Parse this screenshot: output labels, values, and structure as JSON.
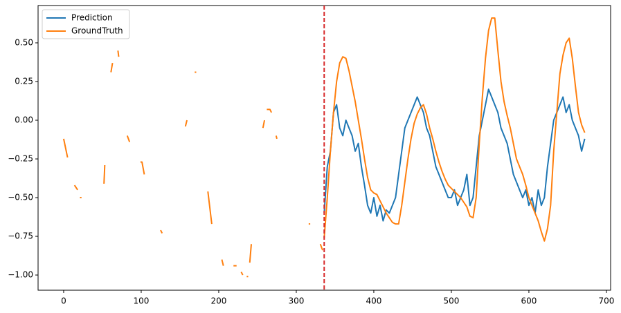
{
  "chart_data": {
    "type": "line",
    "xlim": [
      -33,
      705.4
    ],
    "ylim": [
      -1.098,
      0.741
    ],
    "xticks": [
      0,
      100,
      200,
      300,
      400,
      500,
      600,
      700
    ],
    "yticks": [
      {
        "value": -1,
        "label": "−1.00"
      },
      {
        "value": -0.75,
        "label": "−0.75"
      },
      {
        "value": -0.5,
        "label": "−0.50"
      },
      {
        "value": -0.25,
        "label": "−0.25"
      },
      {
        "value": 0,
        "label": "0.00"
      },
      {
        "value": 0.25,
        "label": "0.25"
      },
      {
        "value": 0.5,
        "label": "0.50"
      }
    ],
    "legend": "upper left",
    "vlines": [
      {
        "x": 336,
        "color": "#d62728"
      }
    ],
    "series": [
      {
        "name": "Prediction",
        "color": "#1f77b4",
        "x": [
          336,
          340,
          344,
          348,
          352,
          356,
          360,
          364,
          368,
          372,
          376,
          380,
          384,
          388,
          392,
          396,
          400,
          404,
          408,
          412,
          416,
          420,
          424,
          428,
          432,
          436,
          440,
          444,
          448,
          452,
          456,
          460,
          464,
          468,
          472,
          476,
          480,
          484,
          488,
          492,
          496,
          500,
          504,
          508,
          512,
          516,
          520,
          524,
          528,
          532,
          536,
          540,
          544,
          548,
          552,
          556,
          560,
          564,
          568,
          572,
          576,
          580,
          584,
          588,
          592,
          596,
          600,
          604,
          608,
          612,
          616,
          620,
          624,
          628,
          632,
          636,
          640,
          644,
          648,
          652,
          656,
          660,
          664,
          668,
          672
        ],
        "values": [
          -0.6,
          -0.3,
          -0.2,
          0.05,
          0.1,
          -0.05,
          -0.1,
          0.0,
          -0.05,
          -0.1,
          -0.2,
          -0.15,
          -0.3,
          -0.42,
          -0.55,
          -0.6,
          -0.5,
          -0.62,
          -0.55,
          -0.65,
          -0.58,
          -0.6,
          -0.55,
          -0.5,
          -0.35,
          -0.2,
          -0.05,
          0.0,
          0.05,
          0.1,
          0.15,
          0.1,
          0.05,
          -0.05,
          -0.1,
          -0.2,
          -0.3,
          -0.35,
          -0.4,
          -0.45,
          -0.5,
          -0.5,
          -0.45,
          -0.55,
          -0.5,
          -0.45,
          -0.35,
          -0.55,
          -0.5,
          -0.3,
          -0.1,
          0.0,
          0.1,
          0.2,
          0.15,
          0.1,
          0.05,
          -0.05,
          -0.1,
          -0.15,
          -0.25,
          -0.35,
          -0.4,
          -0.45,
          -0.5,
          -0.45,
          -0.55,
          -0.5,
          -0.6,
          -0.45,
          -0.55,
          -0.5,
          -0.3,
          -0.15,
          0.0,
          0.05,
          0.1,
          0.15,
          0.05,
          0.1,
          0.0,
          -0.05,
          -0.1,
          -0.2,
          -0.12
        ]
      },
      {
        "name": "GroundTruth",
        "color": "#ff7f0e",
        "x": [
          0,
          5,
          10,
          14,
          18,
          20,
          21,
          23,
          30,
          52,
          53,
          57,
          61,
          63,
          66,
          70,
          71,
          76,
          82,
          85,
          92,
          99,
          101,
          104,
          112,
          125,
          127,
          140,
          157,
          159,
          163,
          169,
          171,
          178,
          186,
          191,
          198,
          204,
          206,
          212,
          219,
          223,
          226,
          229,
          231,
          233,
          236,
          238,
          239,
          240,
          242,
          246,
          257,
          259,
          261,
          262,
          266,
          268,
          270,
          274,
          275,
          290,
          316,
          318,
          322,
          331,
          334,
          335,
          336,
          340,
          344,
          348,
          352,
          356,
          360,
          364,
          368,
          372,
          376,
          380,
          384,
          388,
          392,
          396,
          400,
          404,
          408,
          412,
          416,
          420,
          424,
          428,
          432,
          436,
          440,
          444,
          448,
          452,
          456,
          460,
          464,
          468,
          472,
          476,
          480,
          484,
          488,
          492,
          496,
          500,
          504,
          508,
          512,
          516,
          520,
          524,
          528,
          532,
          536,
          540,
          544,
          548,
          552,
          556,
          560,
          564,
          568,
          572,
          576,
          580,
          584,
          588,
          592,
          596,
          600,
          604,
          608,
          612,
          616,
          620,
          624,
          628,
          632,
          636,
          640,
          644,
          648,
          652,
          656,
          660,
          664,
          668,
          672
        ],
        "values": [
          -0.12,
          -0.24,
          null,
          -0.42,
          -0.45,
          null,
          -0.5,
          -0.5,
          null,
          -0.41,
          -0.29,
          null,
          0.31,
          0.37,
          null,
          0.45,
          0.41,
          null,
          -0.1,
          -0.14,
          null,
          -0.27,
          -0.27,
          -0.35,
          null,
          -0.71,
          -0.73,
          null,
          -0.04,
          0.0,
          null,
          0.31,
          0.31,
          null,
          -0.46,
          -0.67,
          null,
          -0.9,
          -0.94,
          null,
          -0.94,
          -0.94,
          null,
          -0.98,
          -1.0,
          null,
          -1.01,
          -1.01,
          null,
          -0.92,
          -0.8,
          null,
          -0.05,
          0.0,
          null,
          0.07,
          0.07,
          0.05,
          null,
          -0.1,
          -0.12,
          null,
          -0.67,
          -0.67,
          null,
          -0.8,
          -0.84,
          null,
          -0.76,
          -0.5,
          -0.2,
          0.05,
          0.25,
          0.37,
          0.41,
          0.4,
          0.32,
          0.22,
          0.12,
          0.0,
          -0.12,
          -0.25,
          -0.37,
          -0.45,
          -0.47,
          -0.48,
          -0.52,
          -0.56,
          -0.6,
          -0.63,
          -0.66,
          -0.67,
          -0.67,
          -0.55,
          -0.4,
          -0.25,
          -0.12,
          -0.02,
          0.04,
          0.08,
          0.1,
          0.04,
          -0.05,
          -0.12,
          -0.2,
          -0.27,
          -0.33,
          -0.38,
          -0.42,
          -0.44,
          -0.46,
          -0.48,
          -0.5,
          -0.53,
          -0.56,
          -0.62,
          -0.63,
          -0.5,
          -0.15,
          0.15,
          0.4,
          0.58,
          0.66,
          0.66,
          0.45,
          0.25,
          0.12,
          0.03,
          -0.05,
          -0.15,
          -0.25,
          -0.3,
          -0.35,
          -0.42,
          -0.5,
          -0.55,
          -0.6,
          -0.65,
          -0.72,
          -0.78,
          -0.7,
          -0.55,
          -0.2,
          0.05,
          0.3,
          0.42,
          0.5,
          0.53,
          0.4,
          0.22,
          0.05,
          -0.03,
          -0.08
        ]
      }
    ]
  }
}
